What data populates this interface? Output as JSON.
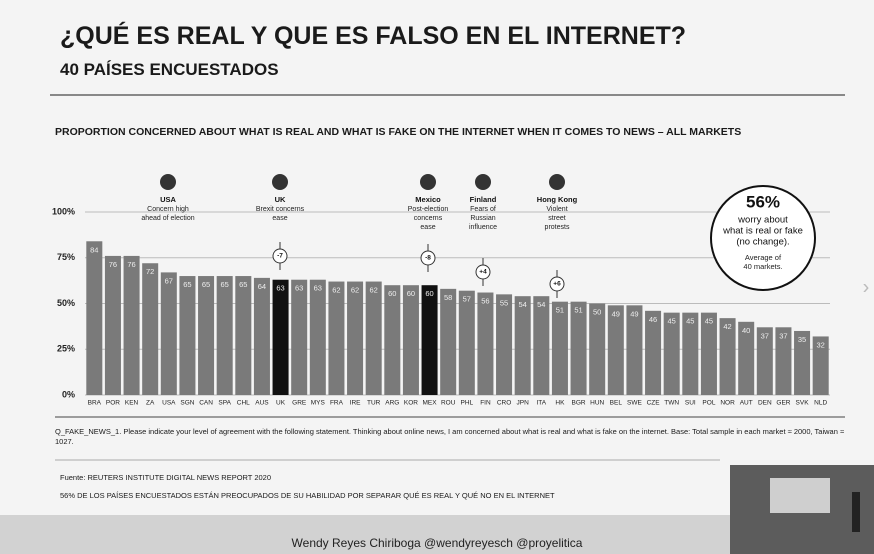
{
  "slide": {
    "title": "¿QUÉ ES REAL Y QUE ES FALSO EN EL INTERNET?",
    "subtitle": "40 PAÍSES ENCUESTADOS",
    "question": "Q_FAKE_NEWS_1. Please indicate your level of agreement with the following statement. Thinking about online news, I am concerned about what is real and what is fake on the internet. Base: Total sample in each market ≈ 2000, Taiwan ≈ 1027.",
    "source": "Fuente: REUTERS INSTITUTE DIGITAL NEWS REPORT 2020",
    "conclusion": "56% DE LOS PAÍSES ENCUESTADOS ESTÁN PREOCUPADOS DE SU HABILIDAD POR SEPARAR  QUÉ ES REAL Y QUÉ NO EN EL INTERNET",
    "footer": "Wendy Reyes Chiriboga   @wendyreyesch   @proyelitica"
  },
  "chart_data": {
    "type": "bar",
    "title": "PROPORTION CONCERNED ABOUT WHAT IS REAL AND WHAT IS FAKE ON THE INTERNET WHEN IT COMES TO NEWS – ALL MARKETS",
    "categories": [
      "BRA",
      "POR",
      "KEN",
      "ZA",
      "USA",
      "SGN",
      "CAN",
      "SPA",
      "CHL",
      "AUS",
      "UK",
      "GRE",
      "MYS",
      "FRA",
      "IRE",
      "TUR",
      "ARG",
      "KOR",
      "MEX",
      "ROU",
      "PHL",
      "FIN",
      "CRO",
      "JPN",
      "ITA",
      "HK",
      "BGR",
      "HUN",
      "BEL",
      "SWE",
      "CZE",
      "TWN",
      "SUI",
      "POL",
      "NOR",
      "AUT",
      "DEN",
      "GER",
      "SVK",
      "NLD"
    ],
    "values": [
      84,
      76,
      76,
      72,
      67,
      65,
      65,
      65,
      65,
      64,
      63,
      63,
      63,
      62,
      62,
      62,
      60,
      60,
      60,
      58,
      57,
      56,
      55,
      54,
      54,
      51,
      51,
      50,
      49,
      49,
      46,
      45,
      45,
      45,
      42,
      40,
      37,
      37,
      35,
      32
    ],
    "colors": [
      "#7a7a7a",
      "#7a7a7a",
      "#7a7a7a",
      "#7a7a7a",
      "#7a7a7a",
      "#7a7a7a",
      "#7a7a7a",
      "#7a7a7a",
      "#7a7a7a",
      "#7a7a7a",
      "#111111",
      "#7a7a7a",
      "#7a7a7a",
      "#7a7a7a",
      "#7a7a7a",
      "#7a7a7a",
      "#7a7a7a",
      "#7a7a7a",
      "#111111",
      "#7a7a7a",
      "#7a7a7a",
      "#7a7a7a",
      "#7a7a7a",
      "#7a7a7a",
      "#7a7a7a",
      "#7a7a7a",
      "#7a7a7a",
      "#7a7a7a",
      "#7a7a7a",
      "#7a7a7a",
      "#7a7a7a",
      "#7a7a7a",
      "#7a7a7a",
      "#7a7a7a",
      "#7a7a7a",
      "#7a7a7a",
      "#7a7a7a",
      "#7a7a7a",
      "#7a7a7a",
      "#7a7a7a"
    ],
    "ylim": [
      0,
      100
    ],
    "yticks": [
      {
        "value": 0,
        "label": "0%"
      },
      {
        "value": 25,
        "label": "25%"
      },
      {
        "value": 50,
        "label": "50%"
      },
      {
        "value": 75,
        "label": "75%"
      },
      {
        "value": 100,
        "label": "100%"
      }
    ],
    "grid": true,
    "annotations": [
      {
        "title": "USA",
        "lines": [
          "Concern high",
          "ahead of election"
        ]
      },
      {
        "title": "UK",
        "lines": [
          "Brexit concerns",
          "ease"
        ],
        "change": -7
      },
      {
        "title": "Mexico",
        "lines": [
          "Post-election",
          "concerns",
          "ease"
        ],
        "change": -8
      },
      {
        "title": "Finland",
        "lines": [
          "Fears of",
          "Russian",
          "influence"
        ],
        "change": {
          "value": 4,
          "label": "+4"
        }
      },
      {
        "title": "Hong Kong",
        "lines": [
          "Violent",
          "street",
          "protests"
        ],
        "change": {
          "value": 6,
          "label": "+6"
        }
      }
    ],
    "callout": {
      "value": {
        "value": 56,
        "label": "56%"
      },
      "lines": [
        "worry about",
        "what is real or fake",
        "(no change)."
      ],
      "note": [
        "Average of",
        "40 markets."
      ]
    }
  }
}
